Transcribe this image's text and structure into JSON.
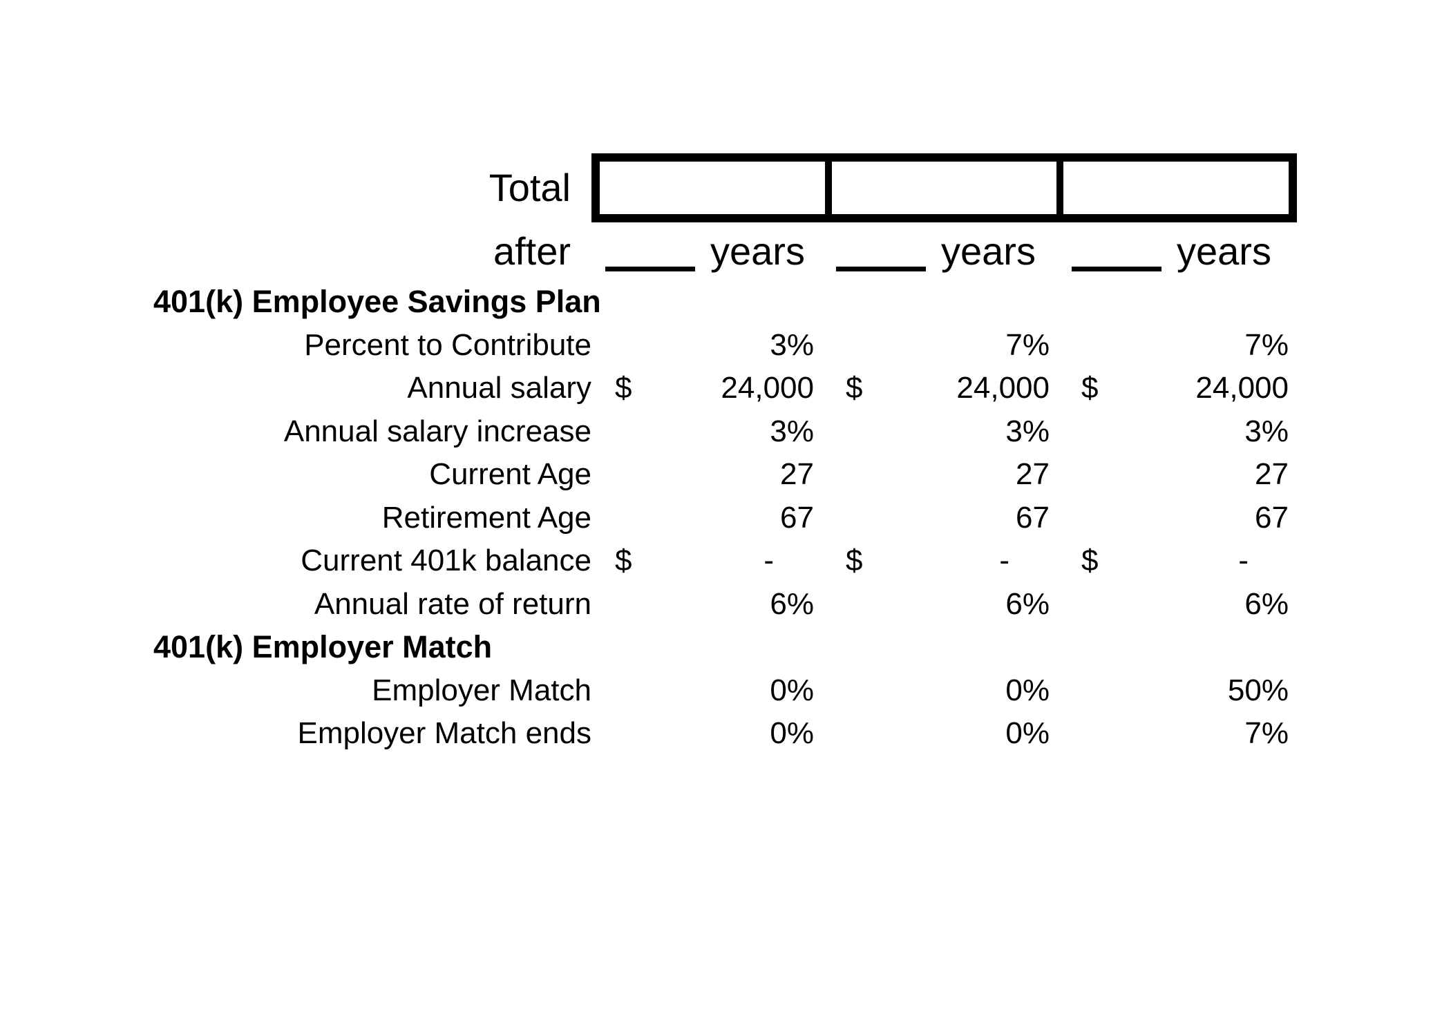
{
  "currency_symbol": "$",
  "header": {
    "total_label": "Total",
    "after_label": "after",
    "years_label": "years"
  },
  "totals_boxes": {
    "count": 3,
    "values": [
      "",
      "",
      ""
    ]
  },
  "sections": [
    {
      "title": "401(k) Employee Savings Plan",
      "rows": [
        {
          "label": "Percent to Contribute",
          "values": [
            "3%",
            "7%",
            "7%"
          ]
        },
        {
          "label": "Annual salary",
          "currency": true,
          "values": [
            "24,000",
            "24,000",
            "24,000"
          ]
        },
        {
          "label": "Annual salary increase",
          "values": [
            "3%",
            "3%",
            "3%"
          ]
        },
        {
          "label": "Current Age",
          "values": [
            "27",
            "27",
            "27"
          ]
        },
        {
          "label": "Retirement Age",
          "values": [
            "67",
            "67",
            "67"
          ]
        },
        {
          "label": "Current 401k balance",
          "currency": true,
          "values": [
            "-",
            "-",
            "-"
          ]
        },
        {
          "label": "Annual rate of return",
          "values": [
            "6%",
            "6%",
            "6%"
          ]
        }
      ]
    },
    {
      "title": "401(k) Employer Match",
      "rows": [
        {
          "label": "Employer Match",
          "values": [
            "0%",
            "0%",
            "50%"
          ]
        },
        {
          "label": "Employer Match ends",
          "values": [
            "0%",
            "0%",
            "7%"
          ]
        }
      ]
    }
  ]
}
